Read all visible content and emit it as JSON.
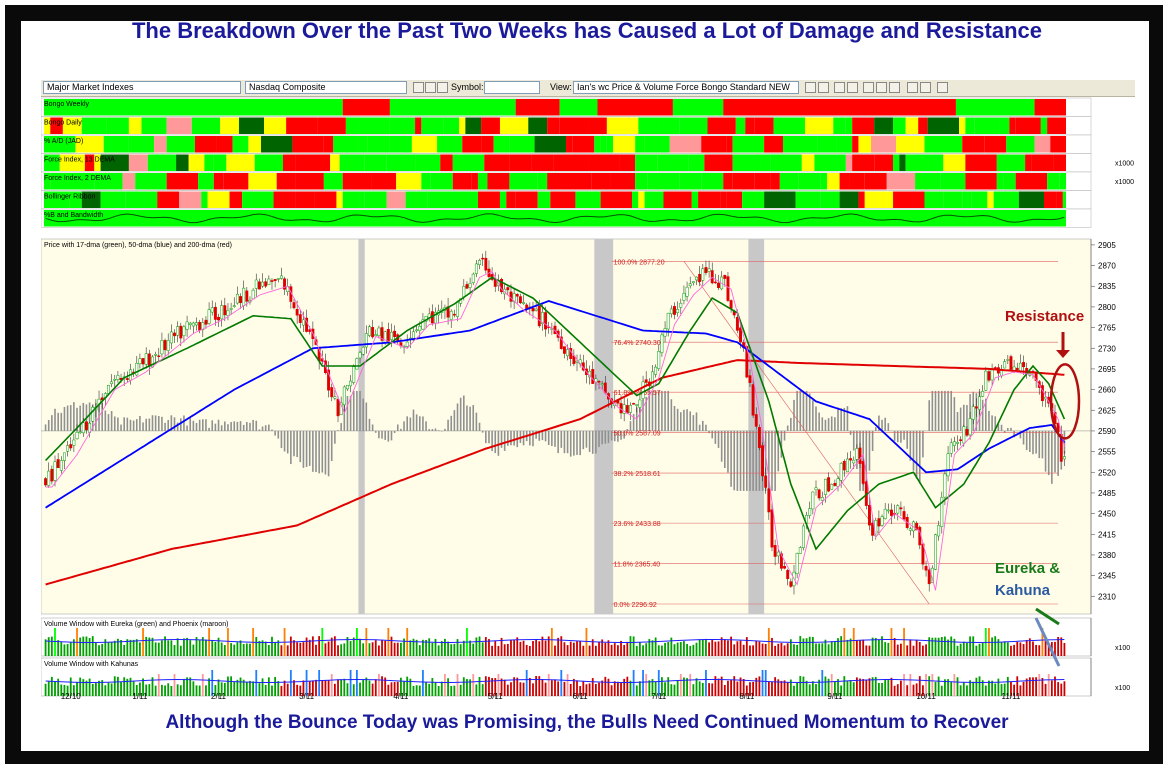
{
  "titles": {
    "top": "The Breakdown Over the Past Two Weeks has Caused a Lot of Damage and Resistance",
    "bottom": "Although the Bounce Today was Promising, the Bulls Need Continued Momentum to Recover"
  },
  "toolbar": {
    "index_group": "Major Market Indexes",
    "index": "Nasdaq Composite",
    "symbol_label": "Symbol:",
    "symbol_value": "",
    "view_label": "View:",
    "view_value": "Ian's wc Price & Volume Force Bongo Standard NEW"
  },
  "annotations": {
    "resistance": "Resistance",
    "eureka": "Eureka &",
    "kahuna": "Kahuna"
  },
  "colors": {
    "green": "#00ff00",
    "dark_green": "#006400",
    "red": "#ff0000",
    "yellow": "#ffff00",
    "pink": "#ff9999",
    "sma17": "#007a00",
    "sma50": "#0000ff",
    "sma200": "#e00000",
    "panel_bg": "#fffde8",
    "shade": "#c8c8c8"
  },
  "chart_data": {
    "type": "candlestick",
    "symbol": "Nasdaq Composite",
    "price_title": "Price with 17-dma (green), 50-dma (blue) and 200-dma (red)",
    "y_axis_ticks": [
      2310,
      2345,
      2380,
      2415,
      2450,
      2485,
      2520,
      2555,
      2590,
      2625,
      2660,
      2695,
      2730,
      2765,
      2800,
      2835,
      2870,
      2905
    ],
    "y_range": [
      2280,
      2915
    ],
    "x_ticks": [
      "12/10",
      "1/11",
      "2/11",
      "3/11",
      "4/11",
      "5/11",
      "6/11",
      "7/11",
      "8/11",
      "9/11",
      "10/11",
      "11/11"
    ],
    "x_tick_index": [
      8,
      30,
      55,
      83,
      113,
      143,
      170,
      195,
      223,
      251,
      280,
      307
    ],
    "n_days": 325,
    "price_path": [
      [
        0,
        2505
      ],
      [
        8,
        2560
      ],
      [
        20,
        2670
      ],
      [
        30,
        2700
      ],
      [
        45,
        2765
      ],
      [
        55,
        2790
      ],
      [
        66,
        2830
      ],
      [
        75,
        2845
      ],
      [
        83,
        2765
      ],
      [
        93,
        2630
      ],
      [
        103,
        2760
      ],
      [
        113,
        2740
      ],
      [
        120,
        2780
      ],
      [
        130,
        2790
      ],
      [
        136,
        2860
      ],
      [
        140,
        2870
      ],
      [
        143,
        2840
      ],
      [
        150,
        2805
      ],
      [
        160,
        2770
      ],
      [
        170,
        2700
      ],
      [
        180,
        2640
      ],
      [
        186,
        2620
      ],
      [
        193,
        2690
      ],
      [
        198,
        2780
      ],
      [
        204,
        2830
      ],
      [
        210,
        2860
      ],
      [
        216,
        2840
      ],
      [
        222,
        2720
      ],
      [
        226,
        2600
      ],
      [
        231,
        2400
      ],
      [
        237,
        2340
      ],
      [
        243,
        2470
      ],
      [
        251,
        2510
      ],
      [
        258,
        2560
      ],
      [
        262,
        2420
      ],
      [
        268,
        2460
      ],
      [
        276,
        2430
      ],
      [
        281,
        2330
      ],
      [
        287,
        2560
      ],
      [
        293,
        2595
      ],
      [
        300,
        2690
      ],
      [
        306,
        2700
      ],
      [
        312,
        2695
      ],
      [
        316,
        2660
      ],
      [
        320,
        2620
      ],
      [
        323,
        2550
      ],
      [
        324,
        2548
      ]
    ],
    "sma17_path": [
      [
        0,
        2540
      ],
      [
        10,
        2595
      ],
      [
        25,
        2680
      ],
      [
        45,
        2730
      ],
      [
        66,
        2785
      ],
      [
        78,
        2780
      ],
      [
        88,
        2700
      ],
      [
        100,
        2700
      ],
      [
        115,
        2760
      ],
      [
        130,
        2805
      ],
      [
        142,
        2850
      ],
      [
        155,
        2815
      ],
      [
        172,
        2730
      ],
      [
        188,
        2650
      ],
      [
        195,
        2670
      ],
      [
        205,
        2760
      ],
      [
        212,
        2815
      ],
      [
        220,
        2790
      ],
      [
        230,
        2640
      ],
      [
        237,
        2500
      ],
      [
        245,
        2390
      ],
      [
        255,
        2455
      ],
      [
        265,
        2500
      ],
      [
        276,
        2520
      ],
      [
        283,
        2460
      ],
      [
        292,
        2500
      ],
      [
        300,
        2570
      ],
      [
        308,
        2660
      ],
      [
        314,
        2700
      ],
      [
        319,
        2670
      ],
      [
        324,
        2610
      ]
    ],
    "sma50_path": [
      [
        0,
        2460
      ],
      [
        30,
        2560
      ],
      [
        60,
        2660
      ],
      [
        85,
        2730
      ],
      [
        110,
        2740
      ],
      [
        135,
        2760
      ],
      [
        160,
        2810
      ],
      [
        172,
        2790
      ],
      [
        190,
        2760
      ],
      [
        210,
        2755
      ],
      [
        220,
        2740
      ],
      [
        230,
        2700
      ],
      [
        245,
        2640
      ],
      [
        262,
        2610
      ],
      [
        280,
        2520
      ],
      [
        290,
        2525
      ],
      [
        300,
        2560
      ],
      [
        313,
        2595
      ],
      [
        320,
        2600
      ],
      [
        324,
        2570
      ]
    ],
    "sma200_path": [
      [
        0,
        2330
      ],
      [
        40,
        2390
      ],
      [
        80,
        2430
      ],
      [
        110,
        2500
      ],
      [
        140,
        2560
      ],
      [
        170,
        2610
      ],
      [
        196,
        2680
      ],
      [
        220,
        2710
      ],
      [
        240,
        2705
      ],
      [
        270,
        2700
      ],
      [
        300,
        2695
      ],
      [
        324,
        2685
      ]
    ],
    "fibonacci": [
      {
        "label": "100.0% 2877.20",
        "value": 2877.2
      },
      {
        "label": "76.4% 2740.30",
        "value": 2740.3
      },
      {
        "label": "61.8% 2655.57",
        "value": 2655.57
      },
      {
        "label": "50.0% 2587.09",
        "value": 2587.09
      },
      {
        "label": "38.2% 2518.61",
        "value": 2518.61
      },
      {
        "label": "23.6% 2433.88",
        "value": 2433.88
      },
      {
        "label": "11.8% 2365.40",
        "value": 2365.4
      },
      {
        "label": "0.0% 2296.92",
        "value": 2296.92
      }
    ],
    "shaded_periods": [
      [
        100,
        102
      ],
      [
        175,
        181
      ],
      [
        224,
        229
      ]
    ],
    "bongo_panels": [
      {
        "name": "Bongo Weekly",
        "y_label": ""
      },
      {
        "name": "Bongo Daily",
        "y_label": ""
      },
      {
        "name": "% A/D (JAD)",
        "y_label": ""
      },
      {
        "name": "Force Index, 13 DEMA",
        "y_label": "x1000"
      },
      {
        "name": "Force Index, 2 DEMA",
        "y_label": "x1000"
      },
      {
        "name": "Bollinger Ribbon",
        "y_label": ""
      },
      {
        "name": "%B and Bandwidth",
        "y_label": ""
      }
    ],
    "bongo_weekly_runs": [
      [
        0,
        "#00ff00"
      ],
      [
        95,
        "#ff0000"
      ],
      [
        110,
        "#00ff00"
      ],
      [
        150,
        "#ff0000"
      ],
      [
        164,
        "#00ff00"
      ],
      [
        176,
        "#ff0000"
      ],
      [
        200,
        "#00ff00"
      ],
      [
        216,
        "#ff0000"
      ],
      [
        290,
        "#00ff00"
      ],
      [
        315,
        "#ff0000"
      ],
      [
        325,
        ""
      ]
    ],
    "volume_panels": [
      {
        "name": "Volume Window with Eureka (green) and Phoenix (maroon)",
        "y_label": "x100"
      },
      {
        "name": "Volume Window with Kahunas",
        "y_label": "x100"
      }
    ]
  }
}
